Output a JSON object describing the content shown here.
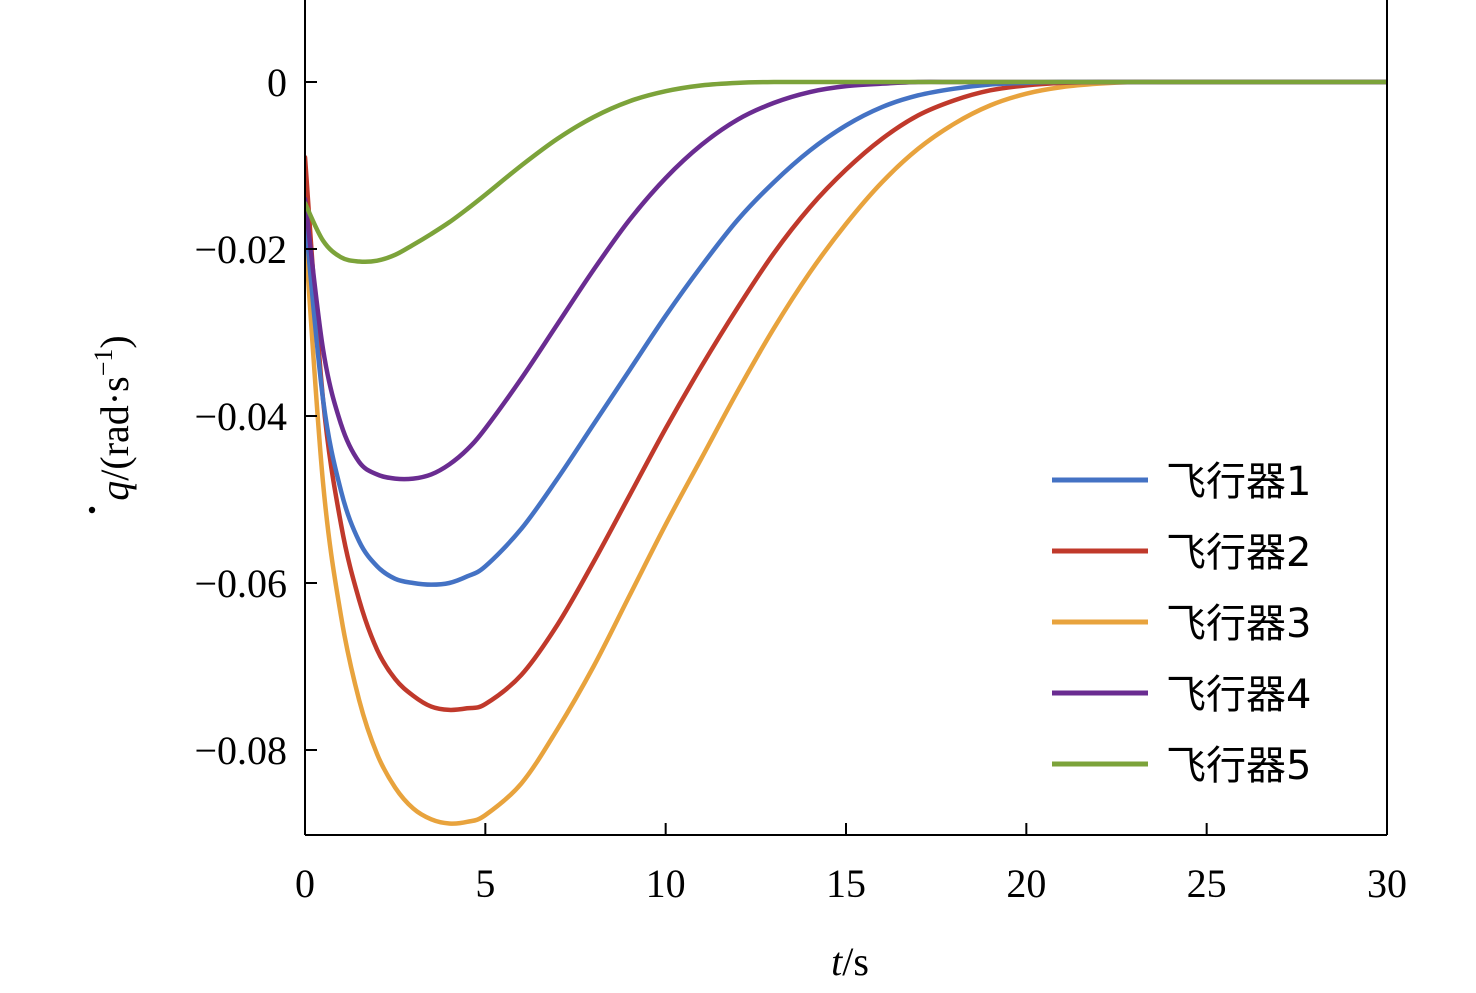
{
  "chart_data": {
    "type": "line",
    "xlabel": {
      "var": "t",
      "unit": "/s"
    },
    "ylabel": {
      "var": "q",
      "unit_prefix": "/(rad·s",
      "unit_exp": "−1",
      "unit_suffix": ")"
    },
    "xlim": [
      0,
      30
    ],
    "ylim": [
      -0.09,
      0.01
    ],
    "x_ticks": [
      0,
      5,
      10,
      15,
      20,
      25,
      30
    ],
    "x_tick_labels": [
      "0",
      "5",
      "10",
      "15",
      "20",
      "25",
      "30"
    ],
    "y_ticks": [
      0,
      -0.02,
      -0.04,
      -0.06,
      -0.08
    ],
    "y_tick_labels": [
      "0",
      "−0.02",
      "−0.04",
      "−0.06",
      "−0.08"
    ],
    "grid": false,
    "legend_position": "bottom-right",
    "x": [
      0,
      0.5,
      1,
      1.5,
      2,
      2.5,
      3,
      3.5,
      4,
      4.5,
      5,
      6,
      7,
      8,
      9,
      10,
      11,
      12,
      13,
      14,
      15,
      16,
      17,
      18,
      19,
      20,
      21,
      22,
      23,
      24,
      25,
      26,
      27,
      28,
      29,
      30
    ],
    "series": [
      {
        "name": "飞行器1",
        "color": "#4472C4",
        "values": [
          -0.016,
          -0.038,
          -0.049,
          -0.055,
          -0.058,
          -0.0595,
          -0.06,
          -0.0602,
          -0.06,
          -0.0592,
          -0.058,
          -0.0535,
          -0.0475,
          -0.041,
          -0.0345,
          -0.028,
          -0.022,
          -0.0165,
          -0.012,
          -0.0082,
          -0.0052,
          -0.003,
          -0.0016,
          -0.0008,
          -0.0003,
          -0.0001,
          0,
          0,
          0,
          0,
          0,
          0,
          0,
          0,
          0,
          0
        ]
      },
      {
        "name": "飞行器2",
        "color": "#C0392B",
        "values": [
          -0.009,
          -0.038,
          -0.053,
          -0.062,
          -0.068,
          -0.0715,
          -0.0735,
          -0.0748,
          -0.0752,
          -0.075,
          -0.0745,
          -0.071,
          -0.065,
          -0.0575,
          -0.0495,
          -0.0415,
          -0.034,
          -0.027,
          -0.0205,
          -0.015,
          -0.0105,
          -0.0068,
          -0.004,
          -0.0022,
          -0.001,
          -0.0004,
          -0.0001,
          0,
          0,
          0,
          0,
          0,
          0,
          0,
          0,
          0
        ]
      },
      {
        "name": "飞行器3",
        "color": "#E8A33D",
        "values": [
          -0.018,
          -0.048,
          -0.064,
          -0.074,
          -0.0805,
          -0.0845,
          -0.087,
          -0.0883,
          -0.0888,
          -0.0886,
          -0.0878,
          -0.084,
          -0.0775,
          -0.07,
          -0.0615,
          -0.053,
          -0.045,
          -0.037,
          -0.0295,
          -0.0228,
          -0.017,
          -0.012,
          -0.008,
          -0.005,
          -0.0028,
          -0.0014,
          -0.0006,
          -0.0002,
          0,
          0,
          0,
          0,
          0,
          0,
          0,
          0
        ]
      },
      {
        "name": "飞行器4",
        "color": "#6A2C91",
        "values": [
          -0.014,
          -0.032,
          -0.041,
          -0.0455,
          -0.047,
          -0.0475,
          -0.0475,
          -0.047,
          -0.0458,
          -0.044,
          -0.0415,
          -0.0355,
          -0.029,
          -0.0225,
          -0.0165,
          -0.0115,
          -0.0075,
          -0.0045,
          -0.0025,
          -0.0012,
          -0.0005,
          -0.0002,
          0,
          0,
          0,
          0,
          0,
          0,
          0,
          0,
          0,
          0,
          0,
          0,
          0,
          0
        ]
      },
      {
        "name": "飞行器5",
        "color": "#7CA33A",
        "values": [
          -0.0145,
          -0.019,
          -0.021,
          -0.0215,
          -0.0214,
          -0.0207,
          -0.0195,
          -0.0182,
          -0.0168,
          -0.0152,
          -0.0135,
          -0.01,
          -0.0068,
          -0.0042,
          -0.0023,
          -0.0011,
          -0.0004,
          -0.0001,
          0,
          0,
          0,
          0,
          0,
          0,
          0,
          0,
          0,
          0,
          0,
          0,
          0,
          0,
          0,
          0,
          0,
          0
        ]
      }
    ]
  }
}
